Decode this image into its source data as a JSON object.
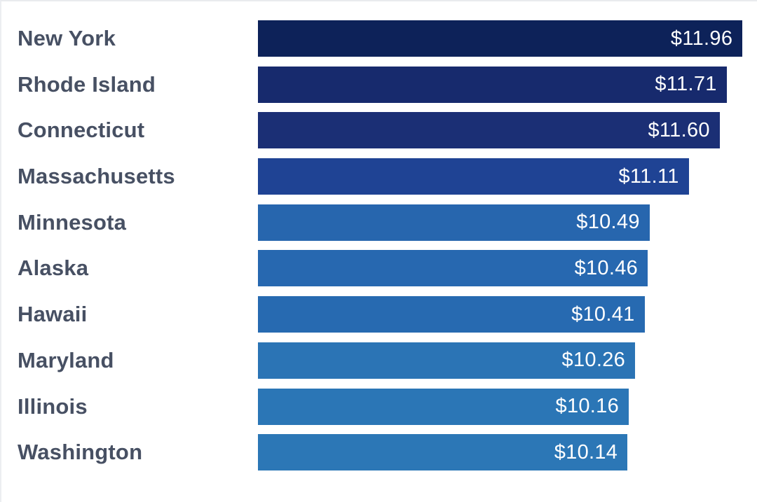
{
  "chart_data": {
    "type": "bar",
    "orientation": "horizontal",
    "categories": [
      "New York",
      "Rhode Island",
      "Connecticut",
      "Massachusetts",
      "Minnesota",
      "Alaska",
      "Hawaii",
      "Maryland",
      "Illinois",
      "Washington"
    ],
    "values": [
      11.96,
      11.71,
      11.6,
      11.11,
      10.49,
      10.46,
      10.41,
      10.26,
      10.16,
      10.14
    ],
    "value_labels": [
      "$11.96",
      "$11.71",
      "$11.60",
      "$11.11",
      "$10.49",
      "$10.46",
      "$10.41",
      "$10.26",
      "$10.16",
      "$10.14"
    ],
    "xlim": [
      4.29,
      12.19
    ],
    "grid": false,
    "legend": false,
    "axes_visible": false,
    "bar_colors": [
      "#0d2259",
      "#172a6d",
      "#1b2f75",
      "#1f4394",
      "#2766ae",
      "#2768b0",
      "#276ab1",
      "#2b74b5",
      "#2b76b6",
      "#2c77b6"
    ],
    "category_label_color": "#475063",
    "value_text_color": "#ffffff",
    "background_color": "#ffffff"
  }
}
